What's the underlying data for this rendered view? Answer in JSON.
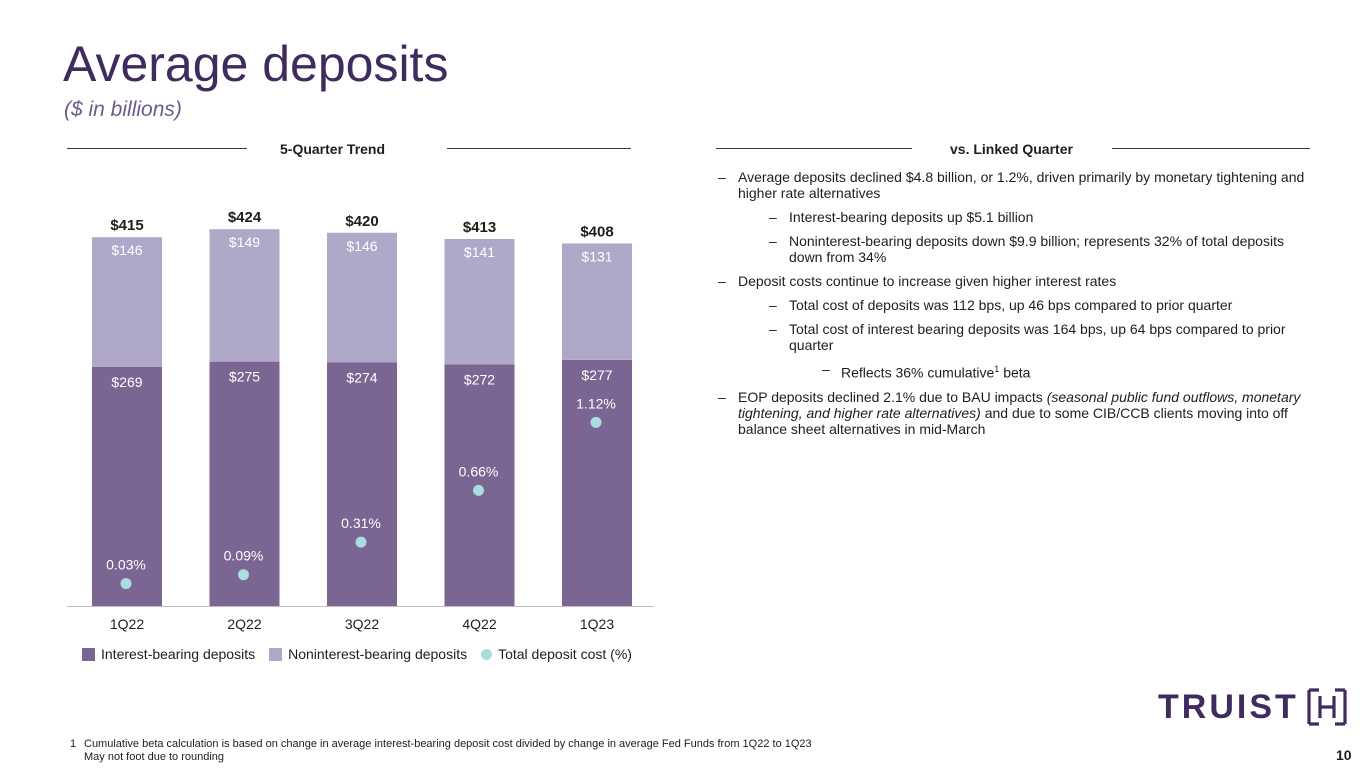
{
  "header": {
    "title": "Average deposits",
    "subtitle": "($ in billions)"
  },
  "left_panel": {
    "heading": "5-Quarter Trend"
  },
  "right_panel": {
    "heading": "vs. Linked Quarter",
    "bullets": {
      "b1": "Average deposits declined $4.8 billion, or 1.2%, driven primarily by monetary tightening and higher rate alternatives",
      "b1a": "Interest-bearing deposits up $5.1 billion",
      "b1b": "Noninterest-bearing deposits down $9.9 billion; represents 32% of total deposits down from 34%",
      "b2": "Deposit costs continue to increase given higher interest rates",
      "b2a": "Total cost of deposits was 112 bps, up 46 bps compared to prior quarter",
      "b2b": "Total cost of interest bearing deposits was 164 bps, up 64 bps compared to prior quarter",
      "b2b1_pre": "Reflects 36% cumulative",
      "b2b1_sup": "1",
      "b2b1_post": " beta",
      "b3_pre": "EOP deposits declined 2.1% due to BAU impacts ",
      "b3_italic": "(seasonal public fund outflows, monetary tightening, and higher rate alternatives)",
      "b3_post": " and due to some CIB/CCB clients moving into off balance sheet alternatives in mid-March"
    }
  },
  "chart_data": {
    "type": "bar",
    "stacked": true,
    "categories": [
      "1Q22",
      "2Q22",
      "3Q22",
      "4Q22",
      "1Q23"
    ],
    "series": [
      {
        "name": "Interest-bearing deposits",
        "color": "#7b6593",
        "values": [
          269,
          275,
          274,
          272,
          277
        ],
        "labels": [
          "$269",
          "$275",
          "$274",
          "$272",
          "$277"
        ]
      },
      {
        "name": "Noninterest-bearing deposits",
        "color": "#b0a8c9",
        "values": [
          146,
          149,
          146,
          141,
          131
        ],
        "labels": [
          "$146",
          "$149",
          "$146",
          "$141",
          "$131"
        ]
      }
    ],
    "totals": [
      415,
      424,
      420,
      413,
      408
    ],
    "total_labels": [
      "$415",
      "$424",
      "$420",
      "$413",
      "$408"
    ],
    "cost_series": {
      "name": "Total deposit cost (%)",
      "color": "#a9dde0",
      "values": [
        0.03,
        0.09,
        0.31,
        0.66,
        1.12
      ],
      "labels": [
        "0.03%",
        "0.09%",
        "0.31%",
        "0.66%",
        "1.12%"
      ]
    },
    "ylim": [
      0,
      440
    ],
    "cost_ylim": [
      0,
      2.5
    ],
    "legend": [
      "Interest-bearing deposits",
      "Noninterest-bearing deposits",
      "Total deposit cost (%)"
    ],
    "legend_position": "bottom"
  },
  "logo": {
    "text": "TRUIST",
    "color": "#3f2b5e"
  },
  "footnotes": {
    "number": "1",
    "line1": "Cumulative beta calculation is based on change in average interest-bearing deposit cost divided by change in average Fed Funds from 1Q22 to 1Q23",
    "line2": "May not foot due to rounding"
  },
  "page_number": "10"
}
